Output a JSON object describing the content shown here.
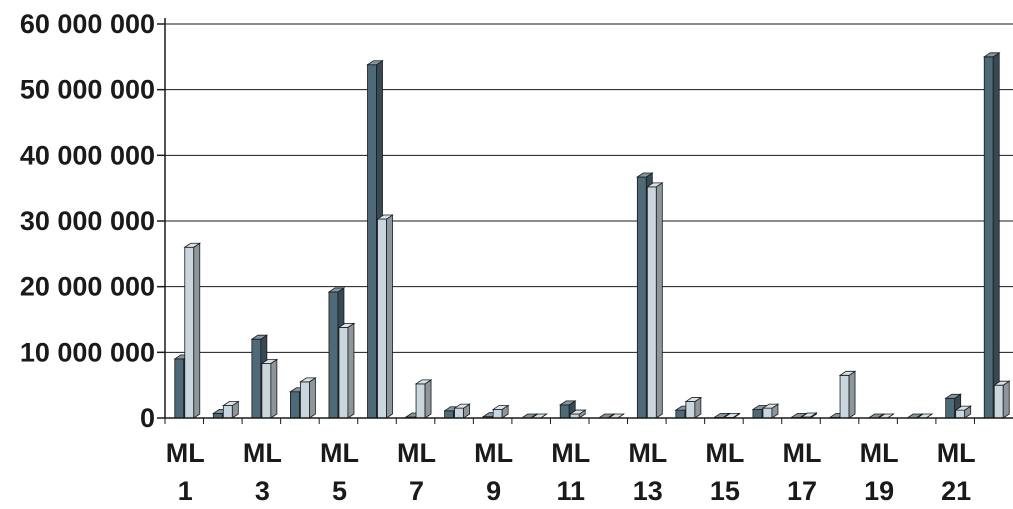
{
  "chart_data": {
    "type": "bar",
    "bar_style": "3d-clustered",
    "grid": true,
    "legend": "none",
    "ylim": [
      0,
      60000000
    ],
    "ytick_labels": [
      "0",
      "10 000 000",
      "20 000 000",
      "30 000 000",
      "40 000 000",
      "50 000 000",
      "60 000 000"
    ],
    "ytick_values": [
      0,
      10000000,
      20000000,
      30000000,
      40000000,
      50000000,
      60000000
    ],
    "xtick_labels": [
      {
        "line1": "ML",
        "line2": "1"
      },
      {
        "line1": "ML",
        "line2": "3"
      },
      {
        "line1": "ML",
        "line2": "5"
      },
      {
        "line1": "ML",
        "line2": "7"
      },
      {
        "line1": "ML",
        "line2": "9"
      },
      {
        "line1": "ML",
        "line2": "11"
      },
      {
        "line1": "ML",
        "line2": "13"
      },
      {
        "line1": "ML",
        "line2": "15"
      },
      {
        "line1": "ML",
        "line2": "17"
      },
      {
        "line1": "ML",
        "line2": "19"
      },
      {
        "line1": "ML",
        "line2": "21"
      }
    ],
    "categories": [
      "ML 1",
      "ML 2",
      "ML 3",
      "ML 4",
      "ML 5",
      "ML 6",
      "ML 7",
      "ML 8",
      "ML 9",
      "ML 10",
      "ML 11",
      "ML 12",
      "ML 13",
      "ML 14",
      "ML 15",
      "ML 16",
      "ML 17",
      "ML 18",
      "ML 19",
      "ML 20",
      "ML 21",
      "ML 22"
    ],
    "series": [
      {
        "color": "#4e6a78",
        "values": [
          9000000,
          700000,
          12000000,
          4000000,
          19200000,
          53800000,
          150000,
          1100000,
          200000,
          0,
          2000000,
          0,
          36700000,
          1200000,
          100000,
          1300000,
          100000,
          100000,
          0,
          0,
          3000000,
          55000000
        ]
      },
      {
        "color": "#c9d6de",
        "values": [
          26000000,
          1900000,
          8300000,
          5500000,
          13800000,
          30300000,
          5200000,
          1500000,
          1300000,
          0,
          600000,
          0,
          35200000,
          2500000,
          100000,
          1500000,
          150000,
          6500000,
          0,
          0,
          1200000,
          5000000
        ]
      }
    ]
  }
}
